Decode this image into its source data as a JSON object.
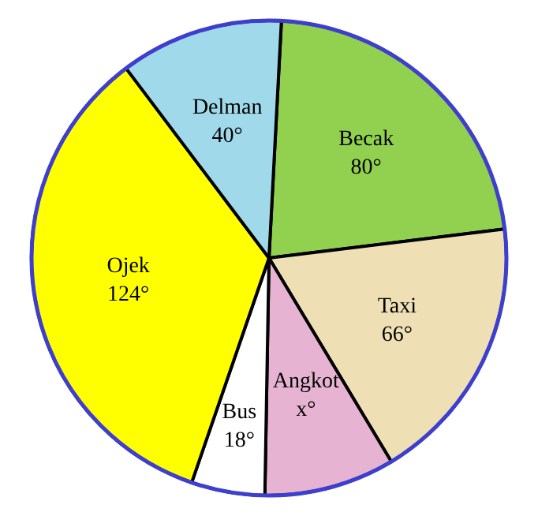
{
  "chart_data": {
    "type": "pie",
    "categories": [
      "Becak",
      "Taxi",
      "Angkot",
      "Bus",
      "Ojek",
      "Delman"
    ],
    "values": [
      80,
      66,
      32,
      18,
      124,
      40
    ],
    "value_labels": [
      "80°",
      "66°",
      "x°",
      "18°",
      "124°",
      "40°"
    ],
    "colors": [
      "#92d050",
      "#eee0b4",
      "#e6b4d2",
      "#ffffff",
      "#ffff00",
      "#a0daea"
    ]
  }
}
